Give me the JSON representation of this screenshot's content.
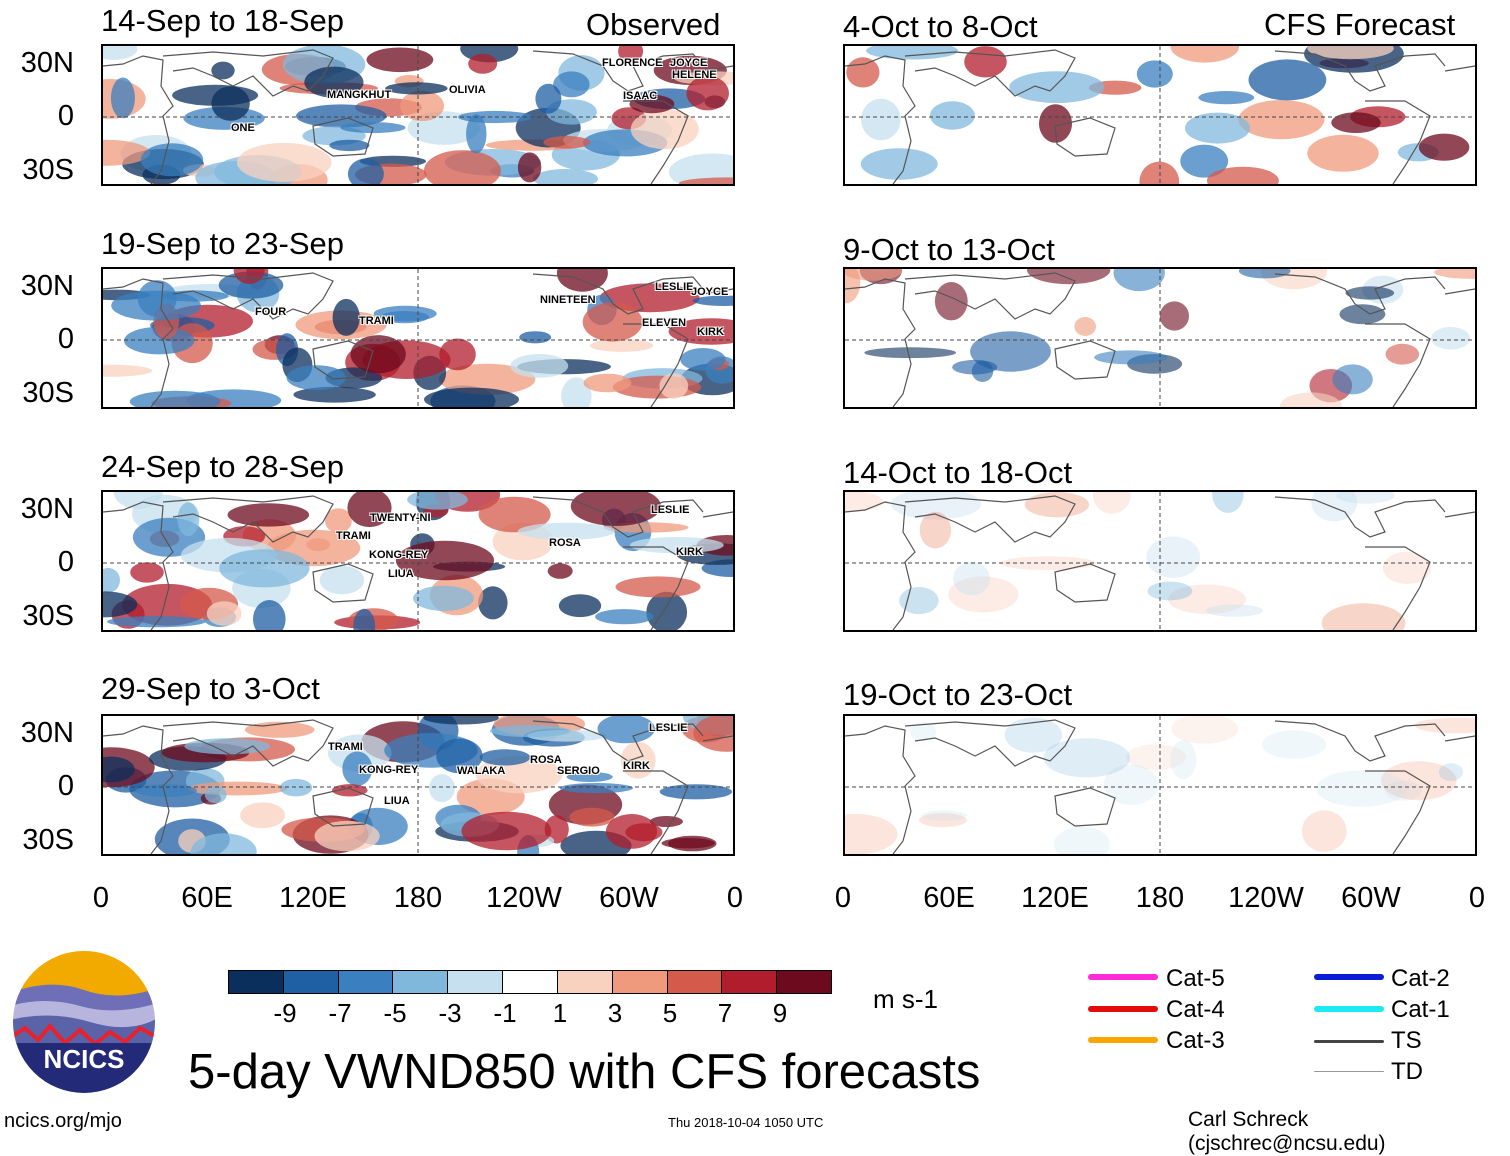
{
  "header": {
    "observed_label": "Observed",
    "forecast_label": "CFS Forecast"
  },
  "panels_observed": [
    {
      "title": "14-Sep to 18-Sep",
      "storms": [
        "FLORENCE",
        "JOYCE",
        "HELENE",
        "MANGKHUT",
        "OLIVIA",
        "ISAAC",
        "ONE"
      ]
    },
    {
      "title": "19-Sep to 23-Sep",
      "storms": [
        "LESLIE",
        "JOYCE",
        "FOUR",
        "NINETEEN",
        "TRAMI",
        "ELEVEN",
        "KIRK"
      ]
    },
    {
      "title": "24-Sep to 28-Sep",
      "storms": [
        "TWENTY-NI",
        "LESLIE",
        "TRAMI",
        "ROSA",
        "KIRK",
        "KONG-REY",
        "LIUA"
      ]
    },
    {
      "title": "29-Sep to 3-Oct",
      "storms": [
        "LESLIE",
        "TRAMI",
        "KONG-REY",
        "WALAKA",
        "ROSA",
        "SERGIO",
        "KIRK",
        "LIUA"
      ]
    }
  ],
  "panels_forecast": [
    {
      "title": "4-Oct to 8-Oct"
    },
    {
      "title": "9-Oct to 13-Oct"
    },
    {
      "title": "14-Oct to 18-Oct"
    },
    {
      "title": "19-Oct to 23-Oct"
    }
  ],
  "axes": {
    "y_labels": [
      "30N",
      "0",
      "30S"
    ],
    "x_labels": [
      "0",
      "60E",
      "120E",
      "180",
      "120W",
      "60W",
      "0"
    ]
  },
  "colorbar": {
    "labels": [
      "-9",
      "-7",
      "-5",
      "-3",
      "-1",
      "1",
      "3",
      "5",
      "7",
      "9"
    ],
    "colors": [
      "#0b2f5c",
      "#1f5fa3",
      "#3a7fbf",
      "#80b8dc",
      "#c6e0ef",
      "#ffffff",
      "#f9d2bf",
      "#ef9a7c",
      "#d45a4c",
      "#b11d2c",
      "#6e0a1e"
    ],
    "units": "m s-1"
  },
  "legend": [
    {
      "label": "Cat-5",
      "color": "#ff2bd8"
    },
    {
      "label": "Cat-4",
      "color": "#e60b0b"
    },
    {
      "label": "Cat-3",
      "color": "#ffa500"
    },
    {
      "label": "Cat-2",
      "color": "#0a1ed6"
    },
    {
      "label": "Cat-1",
      "color": "#1de9f0"
    },
    {
      "label": "TS",
      "color": "#444444"
    },
    {
      "label": "TD",
      "color": "#999999"
    }
  ],
  "logo": {
    "text": "NCICS"
  },
  "main_title": "5-day VWND850 with CFS forecasts",
  "footer": {
    "url": "ncics.org/mjo",
    "timestamp": "Thu 2018-10-04 1050 UTC",
    "credit": "Carl Schreck (cjschrec@ncsu.edu)"
  }
}
